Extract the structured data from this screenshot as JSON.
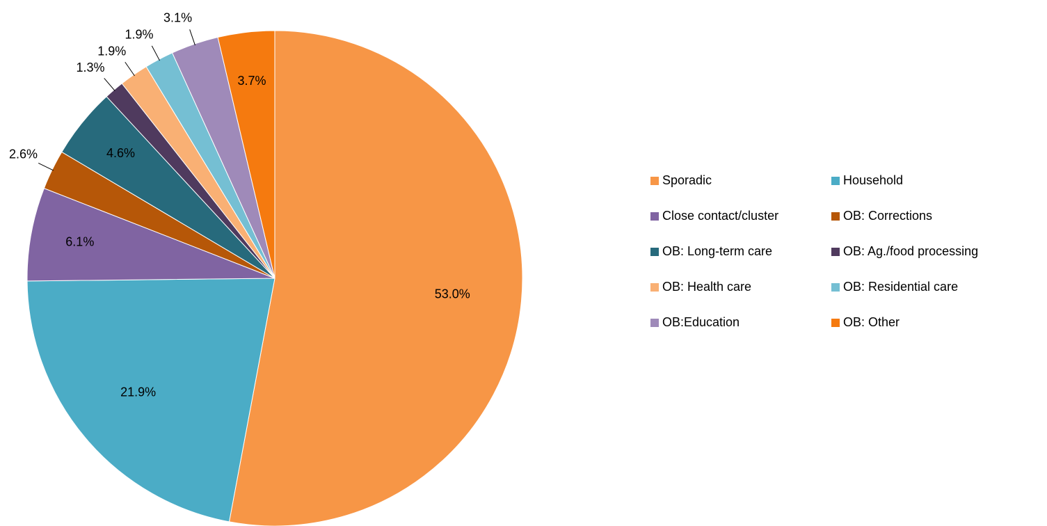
{
  "chart_data": {
    "type": "pie",
    "categories": [
      "Sporadic",
      "Household",
      "Close contact/cluster",
      "OB: Corrections",
      "OB: Long-term care",
      "OB: Ag./food processing",
      "OB: Health care",
      "OB: Residential care",
      "OB:Education",
      "OB: Other"
    ],
    "values": [
      53.0,
      21.9,
      6.1,
      2.6,
      4.6,
      1.3,
      1.9,
      1.9,
      3.1,
      3.7
    ],
    "value_labels": [
      "53.0%",
      "21.9%",
      "6.1%",
      "2.6%",
      "4.6%",
      "1.3%",
      "1.9%",
      "1.9%",
      "3.1%",
      "3.7%"
    ],
    "colors": [
      "#F79646",
      "#4BACC6",
      "#8064A2",
      "#B65708",
      "#276A7C",
      "#4F3A5E",
      "#F9B074",
      "#75BFD3",
      "#9F8AB9",
      "#F57A0F"
    ],
    "legend": "right"
  }
}
